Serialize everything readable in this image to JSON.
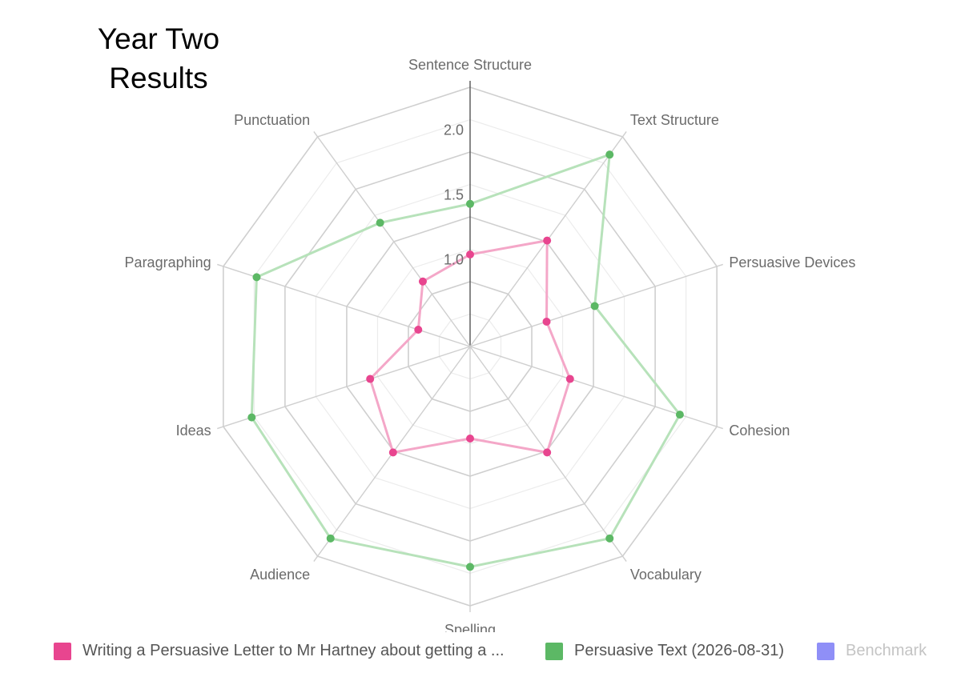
{
  "chart_data": {
    "type": "radar",
    "title": "Year Two Results",
    "axes": [
      "Sentence Structure",
      "Text Structure",
      "Persuasive Devices",
      "Cohesion",
      "Vocabulary",
      "Spelling",
      "Audience",
      "Ideas",
      "Paragraphing",
      "Punctuation"
    ],
    "r_ticks": [
      "1.0",
      "1.5",
      "2.0"
    ],
    "r_range": [
      0.33,
      2.33
    ],
    "grid": true,
    "legend_position": "bottom",
    "series": [
      {
        "name": "Writing a Persuasive Letter to Mr Hartney about getting a ...",
        "color": "#e8458f",
        "line_color": "#f4a7c8",
        "values": [
          1.04,
          1.34,
          0.95,
          1.14,
          1.34,
          1.04,
          1.34,
          1.14,
          0.75,
          0.95
        ],
        "hidden": false
      },
      {
        "name": "Persuasive Text (2026-08-31)",
        "color": "#5cb865",
        "line_color": "#b7e2ba",
        "values": [
          1.43,
          2.16,
          1.34,
          2.03,
          2.16,
          2.03,
          2.16,
          2.1,
          2.06,
          1.51
        ],
        "hidden": false
      },
      {
        "name": "Benchmark",
        "color": "#8f8ff7",
        "values": [],
        "hidden": true
      }
    ]
  }
}
